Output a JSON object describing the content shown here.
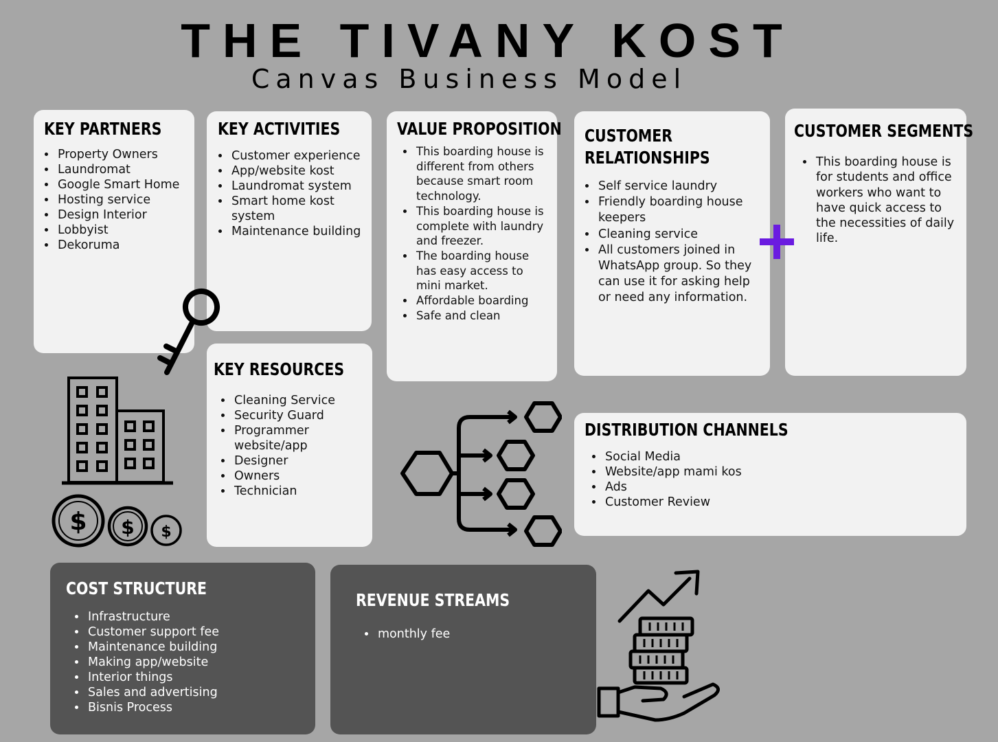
{
  "header": {
    "title": "THE TIVANY KOST",
    "subtitle": "Canvas Business Model"
  },
  "key_partners": {
    "title": "KEY PARTNERS",
    "items": [
      "Property Owners",
      "Laundromat",
      "Google Smart Home",
      "Hosting service",
      "Design Interior",
      "Lobbyist",
      "Dekoruma"
    ]
  },
  "key_activities": {
    "title": "KEY ACTIVITIES",
    "items": [
      "Customer experience",
      "App/website kost",
      "Laundromat system",
      "Smart home kost system",
      "Maintenance building"
    ]
  },
  "value_proposition": {
    "title": "VALUE PROPOSITION",
    "items": [
      "This boarding house is different from others because smart room technology.",
      "This boarding house is complete with laundry and freezer.",
      "The boarding house has  easy access to mini market.",
      "Affordable boarding",
      "Safe and clean"
    ]
  },
  "customer_relationships": {
    "title_line1": "CUSTOMER",
    "title_line2": "RELATIONSHIPS",
    "items": [
      "Self service laundry",
      "Friendly boarding house keepers",
      "Cleaning service",
      "All customers joined in WhatsApp group. So they can use it for asking help or need any information."
    ]
  },
  "customer_segments": {
    "title": "CUSTOMER SEGMENTS",
    "items": [
      "This boarding house is for students and office workers who want to have quick access to the necessities of daily life."
    ]
  },
  "key_resources": {
    "title": "KEY RESOURCES",
    "items": [
      "Cleaning Service",
      "Security Guard",
      "Programmer website/app",
      "Designer",
      "Owners",
      "Technician"
    ]
  },
  "distribution_channels": {
    "title": "DISTRIBUTION CHANNELS",
    "items": [
      "Social Media",
      "Website/app mami kos",
      "Ads",
      "Customer Review"
    ]
  },
  "cost_structure": {
    "title": "COST STRUCTURE",
    "items": [
      "Infrastructure",
      "Customer support fee",
      "Maintenance building",
      "Making app/website",
      "Interior things",
      "Sales and advertising",
      "Bisnis Process"
    ]
  },
  "revenue_streams": {
    "title": "REVENUE STREAMS",
    "items": [
      "monthly fee"
    ]
  },
  "icons": {
    "key": "key-icon",
    "building": "building-icon",
    "coins": "dollar-coins-icon",
    "flow": "hexagon-flow-icon",
    "plus": "plus-icon",
    "growth": "money-growth-hand-icon"
  },
  "colors": {
    "background": "#a6a6a6",
    "card": "#f2f2f2",
    "dark_card": "#545454",
    "plus": "#6a1be0"
  }
}
